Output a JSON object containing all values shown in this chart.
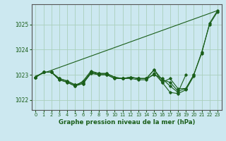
{
  "xlabel": "Graphe pression niveau de la mer (hPa)",
  "background_color": "#cce8f0",
  "grid_color": "#aacfbc",
  "line_color": "#1a5e1a",
  "spine_color": "#555555",
  "ylim": [
    1021.6,
    1025.8
  ],
  "yticks": [
    1022,
    1023,
    1024,
    1025
  ],
  "xlim": [
    -0.5,
    23.5
  ],
  "xticks": [
    0,
    1,
    2,
    3,
    4,
    5,
    6,
    7,
    8,
    9,
    10,
    11,
    12,
    13,
    14,
    15,
    16,
    17,
    18,
    19,
    20,
    21,
    22,
    23
  ],
  "straight_line": [
    1022.95,
    1025.55
  ],
  "series": [
    [
      1022.9,
      1023.1,
      1023.1,
      1022.8,
      1022.7,
      1022.55,
      1022.65,
      1023.1,
      1023.0,
      1023.0,
      1022.85,
      1022.85,
      1022.9,
      1022.85,
      1022.85,
      1023.0,
      1022.85,
      1022.55,
      1022.3,
      1023.0,
      null,
      null,
      null,
      null
    ],
    [
      1022.9,
      1023.1,
      1023.1,
      1022.8,
      1022.7,
      1022.55,
      1022.75,
      1023.15,
      1023.05,
      1023.05,
      1022.9,
      1022.85,
      1022.9,
      1022.85,
      1022.85,
      1023.2,
      1022.7,
      1022.85,
      1022.45,
      1022.45,
      1023.0,
      1023.9,
      1025.0,
      1025.5
    ],
    [
      1022.9,
      1023.1,
      1023.1,
      1022.85,
      1022.75,
      1022.6,
      1022.65,
      1023.05,
      1023.0,
      1023.0,
      1022.85,
      1022.85,
      1022.85,
      1022.8,
      1022.8,
      1023.05,
      1022.7,
      1022.3,
      1022.25,
      1022.4,
      1022.95,
      null,
      null,
      null
    ],
    [
      1022.9,
      1023.1,
      1023.1,
      1022.85,
      1022.75,
      1022.6,
      1022.7,
      1023.1,
      1023.05,
      1023.05,
      1022.9,
      1022.85,
      1022.9,
      1022.85,
      1022.85,
      1023.2,
      1022.8,
      1022.7,
      1022.35,
      1022.45,
      1023.0,
      1023.85,
      1025.05,
      1025.55
    ]
  ]
}
